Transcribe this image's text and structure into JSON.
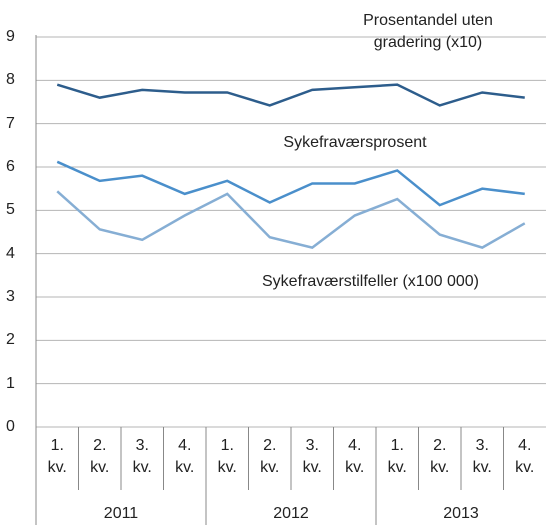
{
  "chart_data": {
    "type": "line",
    "categories": [
      "1. kv.",
      "2. kv.",
      "3. kv.",
      "4. kv.",
      "1. kv.",
      "2. kv.",
      "3. kv.",
      "4. kv.",
      "1. kv.",
      "2. kv.",
      "3. kv.",
      "4. kv."
    ],
    "category_groups": [
      "2011",
      "2012",
      "2013"
    ],
    "series": [
      {
        "name": "Prosentandel uten gradering (x10)",
        "color": "#2d5d8c",
        "values": [
          7.9,
          7.6,
          7.78,
          7.72,
          7.72,
          7.42,
          7.78,
          7.84,
          7.9,
          7.42,
          7.72,
          7.6
        ]
      },
      {
        "name": "Sykefraværsprosent",
        "color": "#4a8fcb",
        "values": [
          6.12,
          5.68,
          5.8,
          5.38,
          5.68,
          5.18,
          5.62,
          5.62,
          5.92,
          5.12,
          5.5,
          5.38
        ]
      },
      {
        "name": "Sykefraværstilfeller (x100 000)",
        "color": "#86aed4",
        "values": [
          5.44,
          4.56,
          4.32,
          4.88,
          5.38,
          4.38,
          4.14,
          4.88,
          5.26,
          4.44,
          4.14,
          4.7
        ]
      }
    ],
    "ylim": [
      0,
      9
    ],
    "yticks": [
      0,
      1,
      2,
      3,
      4,
      5,
      6,
      7,
      8,
      9
    ],
    "grid": true
  }
}
